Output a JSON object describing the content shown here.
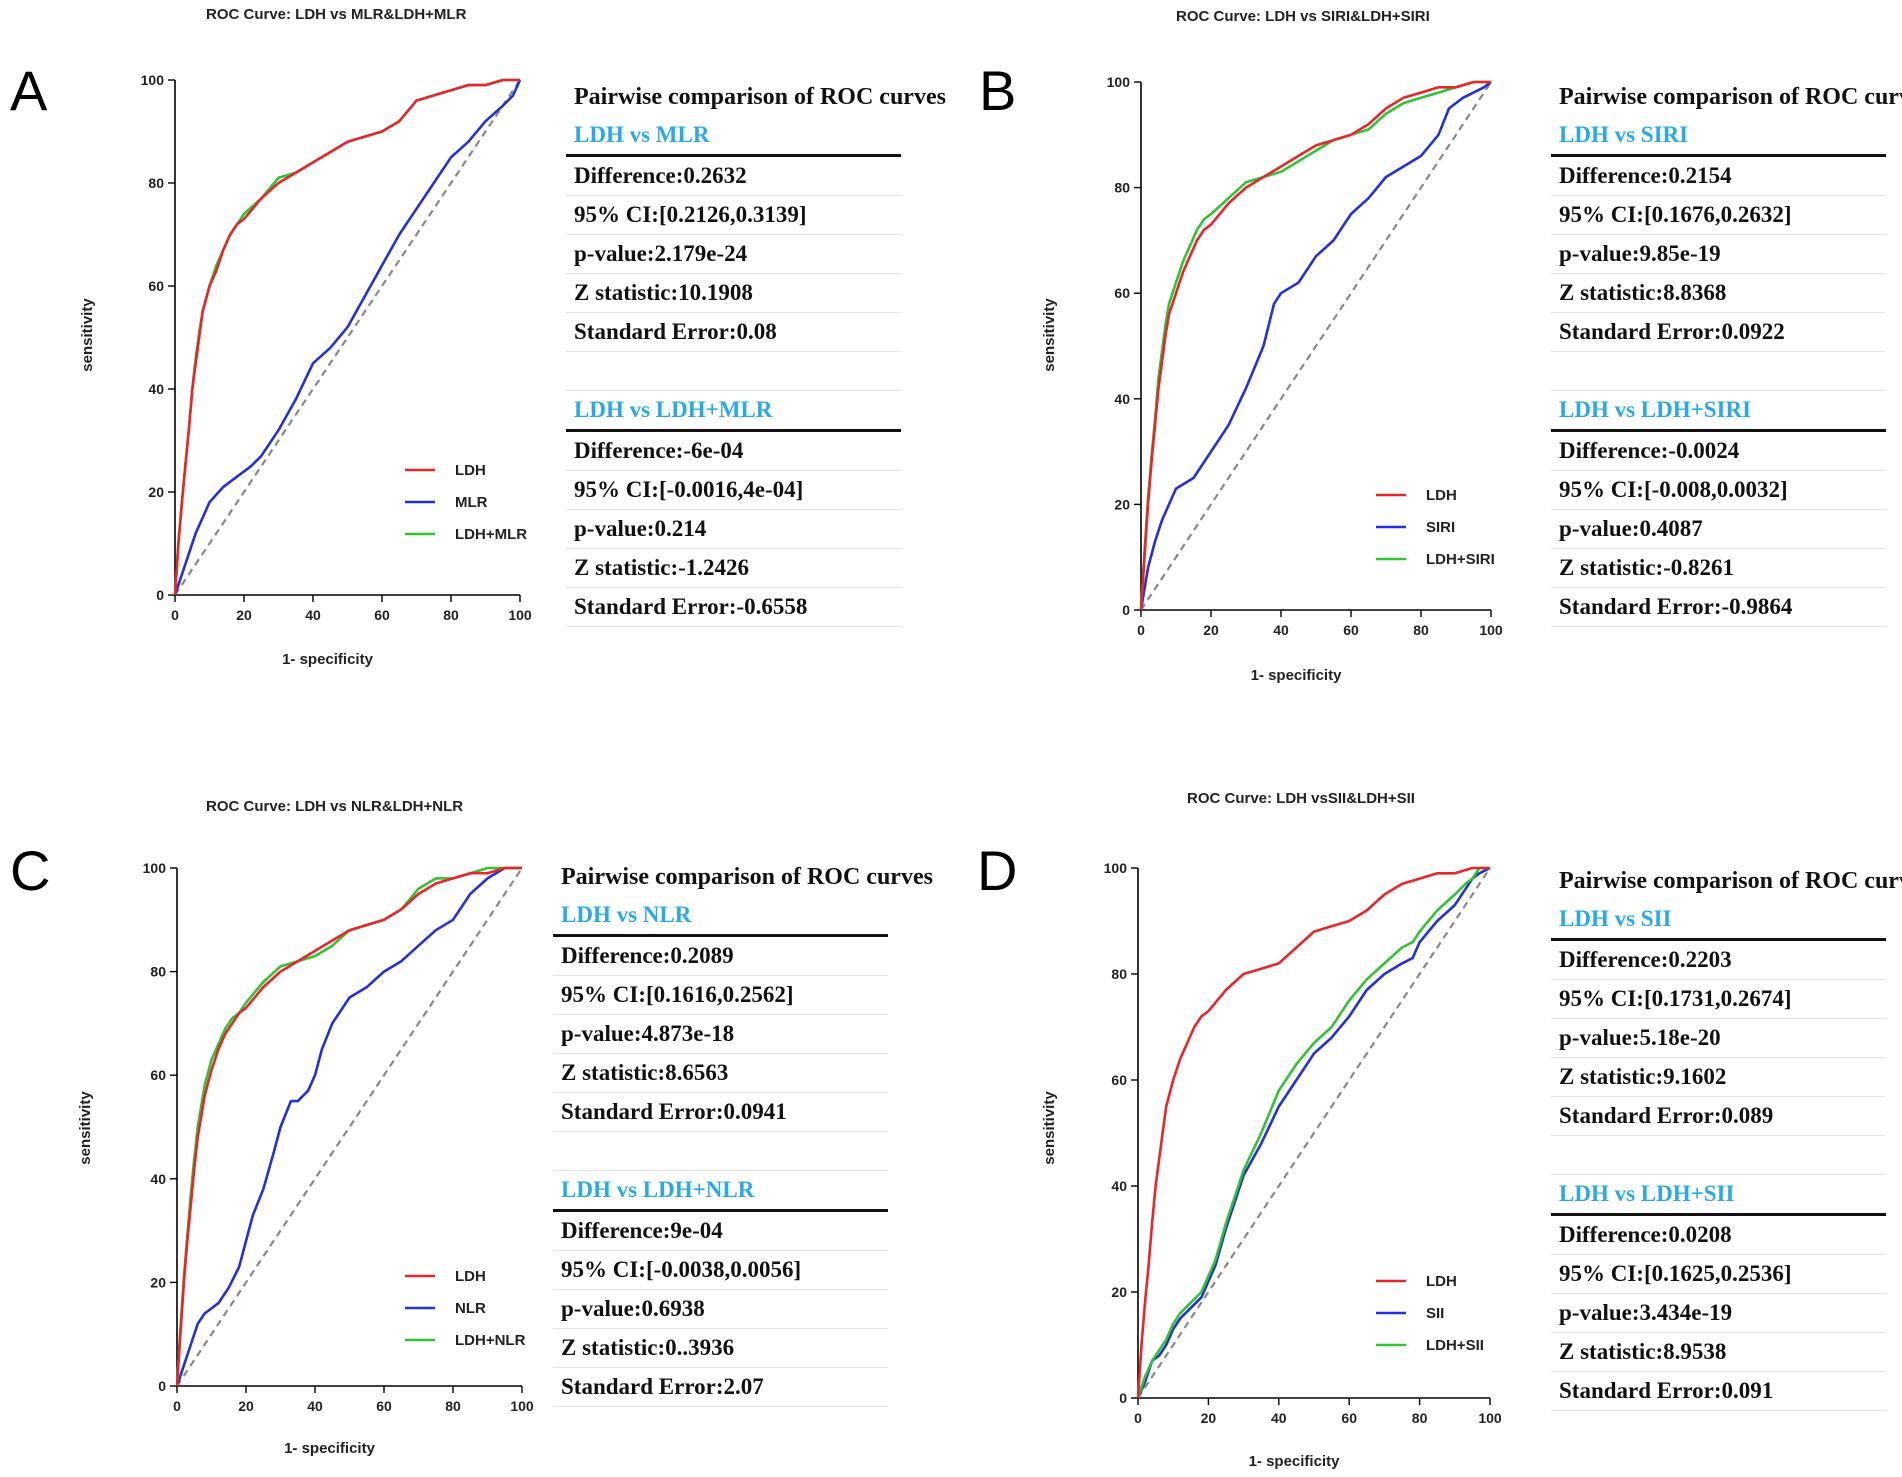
{
  "colors": {
    "LDH": "#e8262a",
    "other": "#2330d8",
    "combo": "#33c233",
    "diag": "#888888",
    "subhead": "#29a9e8"
  },
  "chart_data": [
    {
      "letter": "A",
      "type": "line",
      "title": "ROC Curve: LDH vs MLR&LDH+MLR",
      "xlabel": "1- specificity",
      "ylabel": "sensitivity",
      "xlim": [
        0,
        100
      ],
      "ylim": [
        0,
        100
      ],
      "xticks": [
        "0",
        "20",
        "40",
        "60",
        "80",
        "100"
      ],
      "yticks": [
        "0",
        "20",
        "40",
        "60",
        "80",
        "100"
      ],
      "legend_position": "bottom-right",
      "series": [
        {
          "name": "LDH",
          "color_key": "LDH",
          "x": [
            0,
            1,
            2,
            3,
            4,
            5,
            6,
            7,
            8,
            10,
            12,
            14,
            16,
            18,
            20,
            25,
            30,
            35,
            40,
            45,
            50,
            55,
            60,
            65,
            70,
            75,
            80,
            85,
            90,
            95,
            100
          ],
          "y": [
            0,
            10,
            18,
            25,
            32,
            40,
            45,
            50,
            55,
            60,
            63,
            67,
            70,
            72,
            73,
            77,
            80,
            82,
            84,
            86,
            88,
            89,
            90,
            92,
            96,
            97,
            98,
            99,
            99,
            100,
            100
          ]
        },
        {
          "name": "MLR",
          "color_key": "other",
          "x": [
            0,
            2,
            4,
            6,
            8,
            10,
            14,
            18,
            22,
            25,
            30,
            35,
            40,
            45,
            50,
            55,
            60,
            65,
            70,
            75,
            80,
            85,
            90,
            95,
            98,
            100
          ],
          "y": [
            0,
            4,
            8,
            12,
            15,
            18,
            21,
            23,
            25,
            27,
            32,
            38,
            45,
            48,
            52,
            58,
            64,
            70,
            75,
            80,
            85,
            88,
            92,
            95,
            97,
            100
          ]
        },
        {
          "name": "LDH+MLR",
          "color_key": "combo",
          "x": [
            0,
            1,
            2,
            3,
            4,
            5,
            6,
            7,
            8,
            10,
            12,
            14,
            16,
            18,
            20,
            25,
            30,
            35,
            40,
            45,
            50,
            55,
            60,
            65,
            70,
            75,
            80,
            85,
            90,
            95,
            100
          ],
          "y": [
            0,
            10,
            18,
            25,
            32,
            40,
            46,
            51,
            55,
            60,
            64,
            67,
            70,
            72,
            74,
            77,
            81,
            82,
            84,
            86,
            88,
            89,
            90,
            92,
            96,
            97,
            98,
            99,
            99,
            100,
            100
          ]
        }
      ],
      "table": {
        "header": "Pairwise comparison of ROC curves",
        "comp1": {
          "label": "LDH vs MLR",
          "rows": [
            "Difference:0.2632",
            "95% CI:[0.2126,0.3139]",
            "p-value:2.179e-24",
            "Z statistic:10.1908",
            "Standard Error:0.08"
          ]
        },
        "comp2": {
          "label": "LDH vs LDH+MLR",
          "rows": [
            "Difference:-6e-04",
            "95% CI:[-0.0016,4e-04]",
            "p-value:0.214",
            "Z statistic:-1.2426",
            "Standard Error:-0.6558"
          ]
        }
      }
    },
    {
      "letter": "B",
      "type": "line",
      "title": "ROC Curve: LDH vs SIRI&LDH+SIRI",
      "xlabel": "1- specificity",
      "ylabel": "sensitivity",
      "xlim": [
        0,
        100
      ],
      "ylim": [
        0,
        100
      ],
      "xticks": [
        "0",
        "20",
        "40",
        "60",
        "80",
        "100"
      ],
      "yticks": [
        "0",
        "20",
        "40",
        "60",
        "80",
        "100"
      ],
      "legend_position": "bottom-right",
      "series": [
        {
          "name": "LDH",
          "color_key": "LDH",
          "x": [
            0,
            1,
            2,
            3,
            4,
            5,
            6,
            7,
            8,
            10,
            12,
            14,
            16,
            18,
            20,
            25,
            30,
            35,
            40,
            45,
            50,
            55,
            60,
            65,
            70,
            75,
            80,
            85,
            90,
            95,
            100
          ],
          "y": [
            0,
            10,
            20,
            28,
            35,
            42,
            47,
            52,
            56,
            60,
            64,
            67,
            70,
            72,
            73,
            77,
            80,
            82,
            84,
            86,
            88,
            89,
            90,
            92,
            95,
            97,
            98,
            99,
            99,
            100,
            100
          ]
        },
        {
          "name": "SIRI",
          "color_key": "other",
          "x": [
            0,
            2,
            4,
            6,
            8,
            10,
            15,
            20,
            25,
            30,
            35,
            38,
            40,
            45,
            50,
            55,
            60,
            65,
            70,
            75,
            80,
            85,
            88,
            92,
            95,
            98,
            100
          ],
          "y": [
            0,
            8,
            13,
            17,
            20,
            23,
            25,
            30,
            35,
            42,
            50,
            58,
            60,
            62,
            67,
            70,
            75,
            78,
            82,
            84,
            86,
            90,
            95,
            97,
            98,
            99,
            100
          ]
        },
        {
          "name": "LDH+SIRI",
          "color_key": "combo",
          "x": [
            0,
            1,
            2,
            3,
            4,
            5,
            6,
            7,
            8,
            10,
            12,
            14,
            16,
            18,
            20,
            25,
            30,
            35,
            40,
            45,
            50,
            55,
            60,
            65,
            70,
            75,
            80,
            85,
            90,
            95,
            100
          ],
          "y": [
            0,
            11,
            21,
            29,
            36,
            44,
            49,
            54,
            58,
            62,
            66,
            69,
            72,
            74,
            75,
            78,
            81,
            82,
            83,
            85,
            87,
            89,
            90,
            91,
            94,
            96,
            97,
            98,
            99,
            100,
            100
          ]
        }
      ],
      "table": {
        "header": "Pairwise comparison of ROC curves",
        "comp1": {
          "label": "LDH vs SIRI",
          "rows": [
            "Difference:0.2154",
            "95% CI:[0.1676,0.2632]",
            "p-value:9.85e-19",
            "Z statistic:8.8368",
            "Standard Error:0.0922"
          ]
        },
        "comp2": {
          "label": "LDH vs LDH+SIRI",
          "rows": [
            "Difference:-0.0024",
            "95% CI:[-0.008,0.0032]",
            "p-value:0.4087",
            "Z statistic:-0.8261",
            "Standard Error:-0.9864"
          ]
        }
      }
    },
    {
      "letter": "C",
      "type": "line",
      "title": "ROC Curve: LDH vs NLR&LDH+NLR",
      "xlabel": "1- specificity",
      "ylabel": "sensitivity",
      "xlim": [
        0,
        100
      ],
      "ylim": [
        0,
        100
      ],
      "xticks": [
        "0",
        "20",
        "40",
        "60",
        "80",
        "100"
      ],
      "yticks": [
        "0",
        "20",
        "40",
        "60",
        "80",
        "100"
      ],
      "legend_position": "bottom-right",
      "series": [
        {
          "name": "LDH",
          "color_key": "LDH",
          "x": [
            0,
            1,
            2,
            3,
            4,
            5,
            6,
            7,
            8,
            10,
            12,
            14,
            16,
            18,
            20,
            25,
            30,
            35,
            40,
            45,
            50,
            55,
            60,
            65,
            70,
            75,
            80,
            85,
            90,
            95,
            100
          ],
          "y": [
            0,
            10,
            20,
            28,
            35,
            42,
            48,
            52,
            56,
            61,
            65,
            68,
            70,
            72,
            73,
            77,
            80,
            82,
            84,
            86,
            88,
            89,
            90,
            92,
            95,
            97,
            98,
            99,
            99,
            100,
            100
          ]
        },
        {
          "name": "NLR",
          "color_key": "other",
          "x": [
            0,
            2,
            4,
            6,
            8,
            10,
            12,
            15,
            18,
            20,
            22,
            25,
            28,
            30,
            33,
            35,
            38,
            40,
            42,
            45,
            50,
            55,
            60,
            65,
            70,
            75,
            80,
            85,
            90,
            95,
            100
          ],
          "y": [
            0,
            4,
            8,
            12,
            14,
            15,
            16,
            19,
            23,
            28,
            33,
            38,
            45,
            50,
            55,
            55,
            57,
            60,
            65,
            70,
            75,
            77,
            80,
            82,
            85,
            88,
            90,
            95,
            98,
            100,
            100
          ]
        },
        {
          "name": "LDH+NLR",
          "color_key": "combo",
          "x": [
            0,
            1,
            2,
            3,
            4,
            5,
            6,
            7,
            8,
            10,
            12,
            14,
            16,
            18,
            20,
            25,
            30,
            35,
            40,
            45,
            50,
            55,
            60,
            65,
            70,
            75,
            80,
            85,
            90,
            95,
            100
          ],
          "y": [
            0,
            11,
            21,
            29,
            37,
            44,
            50,
            54,
            58,
            63,
            66,
            69,
            71,
            72,
            74,
            78,
            81,
            82,
            83,
            85,
            88,
            89,
            90,
            92,
            96,
            98,
            98,
            99,
            100,
            100,
            100
          ]
        }
      ],
      "table": {
        "header": "Pairwise comparison of ROC curves",
        "comp1": {
          "label": "LDH vs NLR",
          "rows": [
            "Difference:0.2089",
            "95% CI:[0.1616,0.2562]",
            "p-value:4.873e-18",
            "Z statistic:8.6563",
            "Standard Error:0.0941"
          ]
        },
        "comp2": {
          "label": "LDH vs LDH+NLR",
          "rows": [
            "Difference:9e-04",
            "95% CI:[-0.0038,0.0056]",
            "p-value:0.6938",
            "Z statistic:0..3936",
            "Standard Error:2.07"
          ]
        }
      }
    },
    {
      "letter": "D",
      "type": "line",
      "title": "ROC Curve: LDH vsSII&LDH+SII",
      "xlabel": "1- specificity",
      "ylabel": "sensitivity",
      "xlim": [
        0,
        100
      ],
      "ylim": [
        0,
        100
      ],
      "xticks": [
        "0",
        "20",
        "40",
        "60",
        "80",
        "100"
      ],
      "yticks": [
        "0",
        "20",
        "40",
        "60",
        "80",
        "100"
      ],
      "legend_position": "bottom-right",
      "series": [
        {
          "name": "LDH",
          "color_key": "LDH",
          "x": [
            0,
            1,
            2,
            3,
            4,
            5,
            6,
            7,
            8,
            10,
            12,
            14,
            16,
            18,
            20,
            25,
            30,
            35,
            40,
            45,
            50,
            55,
            60,
            65,
            70,
            75,
            80,
            85,
            90,
            95,
            100
          ],
          "y": [
            0,
            10,
            18,
            25,
            33,
            40,
            45,
            50,
            55,
            60,
            64,
            67,
            70,
            72,
            73,
            77,
            80,
            81,
            82,
            85,
            88,
            89,
            90,
            92,
            95,
            97,
            98,
            99,
            99,
            100,
            100
          ]
        },
        {
          "name": "SII",
          "color_key": "other",
          "x": [
            0,
            2,
            4,
            6,
            8,
            10,
            12,
            15,
            18,
            20,
            22,
            25,
            28,
            30,
            35,
            40,
            45,
            50,
            55,
            60,
            65,
            70,
            75,
            78,
            80,
            85,
            90,
            93,
            95,
            97,
            100
          ],
          "y": [
            0,
            3,
            7,
            8,
            10,
            13,
            15,
            17,
            19,
            22,
            25,
            32,
            38,
            42,
            48,
            55,
            60,
            65,
            68,
            72,
            77,
            80,
            82,
            83,
            86,
            90,
            93,
            96,
            98,
            99,
            100
          ]
        },
        {
          "name": "LDH+SII",
          "color_key": "combo",
          "x": [
            0,
            2,
            4,
            6,
            8,
            10,
            12,
            15,
            18,
            20,
            22,
            25,
            28,
            30,
            35,
            40,
            45,
            50,
            55,
            60,
            65,
            70,
            75,
            78,
            80,
            85,
            90,
            93,
            95,
            97,
            100
          ],
          "y": [
            0,
            4,
            7,
            9,
            11,
            14,
            16,
            18,
            20,
            23,
            26,
            33,
            39,
            43,
            50,
            58,
            63,
            67,
            70,
            75,
            79,
            82,
            85,
            86,
            88,
            92,
            95,
            97,
            98,
            100,
            100
          ]
        }
      ],
      "table": {
        "header": "Pairwise comparison of ROC curves",
        "comp1": {
          "label": "LDH vs SII",
          "rows": [
            "Difference:0.2203",
            "95% CI:[0.1731,0.2674]",
            "p-value:5.18e-20",
            "Z statistic:9.1602",
            "Standard Error:0.089"
          ]
        },
        "comp2": {
          "label": "LDH vs LDH+SII",
          "rows": [
            "Difference:0.0208",
            "95% CI:[0.1625,0.2536]",
            "p-value:3.434e-19",
            "Z statistic:8.9538",
            "Standard Error:0.091"
          ]
        }
      }
    }
  ]
}
